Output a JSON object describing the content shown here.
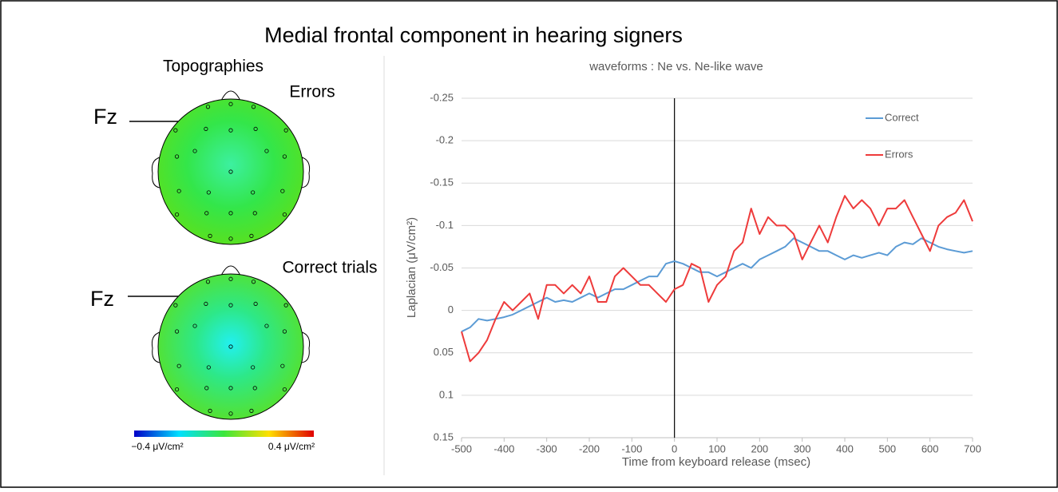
{
  "title": "Medial frontal component in hearing signers",
  "topographies": {
    "title": "Topographies",
    "maps": [
      {
        "label": "Errors",
        "electrode": "Fz"
      },
      {
        "label": "Correct trials",
        "electrode": "Fz"
      }
    ],
    "colorbar": {
      "min_label": "−0.4 μV/cm²",
      "max_label": "0.4 μV/cm²"
    }
  },
  "chart_data": {
    "type": "line",
    "title": "waveforms : Ne vs. Ne-like wave",
    "x_label": "Time from keyboard release (msec)",
    "y_label": "Laplacian (μV/cm²)",
    "xlim": [
      -500,
      700
    ],
    "xticks": [
      -500,
      -400,
      -300,
      -200,
      -100,
      0,
      100,
      200,
      300,
      400,
      500,
      600,
      700
    ],
    "ylim": [
      0.15,
      -0.25
    ],
    "yticks": [
      -0.25,
      -0.2,
      -0.15,
      -0.1,
      -0.05,
      0,
      0.05,
      0.1,
      0.15
    ],
    "grid": true,
    "vline": 0,
    "legend": "upper right",
    "x": [
      -500,
      -480,
      -460,
      -440,
      -420,
      -400,
      -380,
      -360,
      -340,
      -320,
      -300,
      -280,
      -260,
      -240,
      -220,
      -200,
      -180,
      -160,
      -140,
      -120,
      -100,
      -80,
      -60,
      -40,
      -20,
      0,
      20,
      40,
      60,
      80,
      100,
      120,
      140,
      160,
      180,
      200,
      220,
      240,
      260,
      280,
      300,
      320,
      340,
      360,
      380,
      400,
      420,
      440,
      460,
      480,
      500,
      520,
      540,
      560,
      580,
      600,
      620,
      640,
      660,
      680,
      700
    ],
    "series": [
      {
        "name": "Correct",
        "color": "#5b9bd5",
        "values": [
          0.025,
          0.02,
          0.01,
          0.012,
          0.01,
          0.008,
          0.005,
          0,
          -0.005,
          -0.01,
          -0.015,
          -0.01,
          -0.012,
          -0.01,
          -0.015,
          -0.02,
          -0.015,
          -0.02,
          -0.025,
          -0.025,
          -0.03,
          -0.035,
          -0.04,
          -0.04,
          -0.055,
          -0.058,
          -0.055,
          -0.05,
          -0.045,
          -0.045,
          -0.04,
          -0.045,
          -0.05,
          -0.055,
          -0.05,
          -0.06,
          -0.065,
          -0.07,
          -0.075,
          -0.085,
          -0.08,
          -0.075,
          -0.07,
          -0.07,
          -0.065,
          -0.06,
          -0.065,
          -0.062,
          -0.065,
          -0.068,
          -0.065,
          -0.075,
          -0.08,
          -0.078,
          -0.085,
          -0.08,
          -0.075,
          -0.072,
          -0.07,
          -0.068,
          -0.07
        ]
      },
      {
        "name": "Errors",
        "color": "#ee3b3b",
        "values": [
          0.025,
          0.06,
          0.05,
          0.035,
          0.01,
          -0.01,
          0,
          -0.01,
          -0.02,
          0.01,
          -0.03,
          -0.03,
          -0.02,
          -0.03,
          -0.02,
          -0.04,
          -0.01,
          -0.01,
          -0.04,
          -0.05,
          -0.04,
          -0.03,
          -0.03,
          -0.02,
          -0.01,
          -0.025,
          -0.03,
          -0.055,
          -0.05,
          -0.01,
          -0.03,
          -0.04,
          -0.07,
          -0.08,
          -0.12,
          -0.09,
          -0.11,
          -0.1,
          -0.1,
          -0.09,
          -0.06,
          -0.08,
          -0.1,
          -0.08,
          -0.11,
          -0.135,
          -0.12,
          -0.13,
          -0.12,
          -0.1,
          -0.12,
          -0.12,
          -0.13,
          -0.11,
          -0.09,
          -0.07,
          -0.1,
          -0.11,
          -0.115,
          -0.13,
          -0.105
        ]
      }
    ]
  }
}
